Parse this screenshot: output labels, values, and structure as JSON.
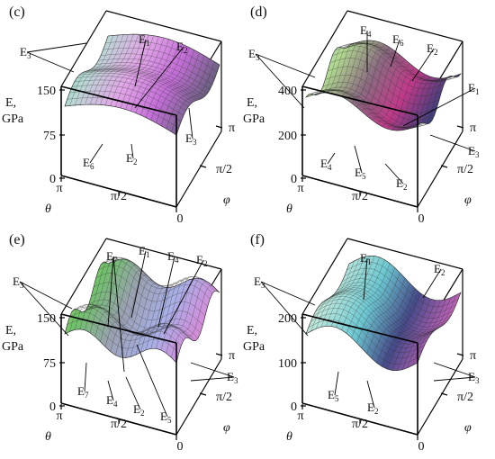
{
  "chart_data": [
    {
      "type": "surface",
      "panel": "(c)",
      "zlabel_line1": "E,",
      "zlabel_line2": "GPa",
      "z_ticks": [
        "150",
        "75",
        "0"
      ],
      "theta_ticks": [
        "π",
        "π/2",
        "0"
      ],
      "phi_ticks": [
        "π",
        "π/2"
      ],
      "theta_label": "θ",
      "phi_label": "φ",
      "labels": [
        {
          "base": "E",
          "sub": "3"
        },
        {
          "base": "E",
          "sub": "1"
        },
        {
          "base": "E",
          "sub": "2"
        },
        {
          "base": "E",
          "sub": "3"
        },
        {
          "base": "E",
          "sub": "6"
        },
        {
          "base": "E",
          "sub": "2"
        }
      ]
    },
    {
      "type": "surface",
      "panel": "(d)",
      "zlabel_line1": "E,",
      "zlabel_line2": "GPa",
      "z_ticks": [
        "400",
        "200",
        "0"
      ],
      "theta_ticks": [
        "π",
        "π/2",
        "0"
      ],
      "phi_ticks": [
        "π",
        "π/2"
      ],
      "theta_label": "θ",
      "phi_label": "φ",
      "labels": [
        {
          "base": "E",
          "sub": "3"
        },
        {
          "base": "E",
          "sub": "4"
        },
        {
          "base": "E",
          "sub": "6"
        },
        {
          "base": "E",
          "sub": "2"
        },
        {
          "base": "E",
          "sub": "1"
        },
        {
          "base": "E",
          "sub": "3"
        },
        {
          "base": "E",
          "sub": "4"
        },
        {
          "base": "E",
          "sub": "5"
        },
        {
          "base": "E",
          "sub": "2"
        }
      ]
    },
    {
      "type": "surface",
      "panel": "(e)",
      "zlabel_line1": "E,",
      "zlabel_line2": "GPa",
      "z_ticks": [
        "150",
        "75",
        "0"
      ],
      "theta_ticks": [
        "π",
        "π/2",
        "0"
      ],
      "phi_ticks": [
        "π",
        "π/2"
      ],
      "theta_label": "θ",
      "phi_label": "φ",
      "labels": [
        {
          "base": "E",
          "sub": "3"
        },
        {
          "base": "E",
          "sub": "7"
        },
        {
          "base": "E",
          "sub": "1"
        },
        {
          "base": "E",
          "sub": "4"
        },
        {
          "base": "E",
          "sub": "2"
        },
        {
          "base": "E",
          "sub": "3"
        },
        {
          "base": "E",
          "sub": "7"
        },
        {
          "base": "E",
          "sub": "4"
        },
        {
          "base": "E",
          "sub": "2"
        },
        {
          "base": "E",
          "sub": "5"
        }
      ]
    },
    {
      "type": "surface",
      "panel": "(f)",
      "zlabel_line1": "E,",
      "zlabel_line2": "GPa",
      "z_ticks": [
        "200",
        "100",
        "0"
      ],
      "theta_ticks": [
        "π",
        "π/2",
        "0"
      ],
      "phi_ticks": [
        "π",
        "π/2"
      ],
      "theta_label": "θ",
      "phi_label": "φ",
      "labels": [
        {
          "base": "E",
          "sub": "3"
        },
        {
          "base": "E",
          "sub": "1"
        },
        {
          "base": "E",
          "sub": "2"
        },
        {
          "base": "E",
          "sub": "3"
        },
        {
          "base": "E",
          "sub": "5"
        },
        {
          "base": "E",
          "sub": "2"
        }
      ]
    }
  ]
}
